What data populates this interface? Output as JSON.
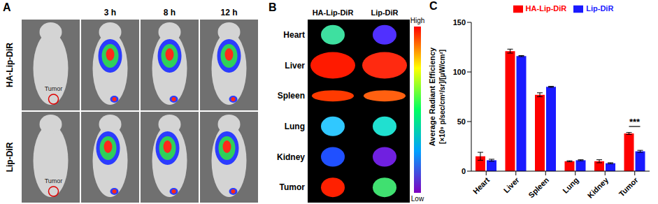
{
  "panel_a": {
    "letter": "A",
    "rows": [
      "HA-Lip-DiR",
      "Lip-DiR"
    ],
    "times": [
      "3 h",
      "8 h",
      "12 h"
    ],
    "marker_label": "Tumor"
  },
  "panel_b": {
    "letter": "B",
    "columns": [
      "HA-Lip-DiR",
      "Lip-DiR"
    ],
    "organs": [
      "Heart",
      "Liver",
      "Spleen",
      "Lung",
      "Kidney",
      "Tumor"
    ],
    "scale_high": "High",
    "scale_low": "Low"
  },
  "panel_c": {
    "letter": "C"
  },
  "chart_data": {
    "type": "bar",
    "ylabel": [
      "Average Radiant Efficiency",
      "[×10⁹ p/sec/cm²/sr]/[μW/cm²]"
    ],
    "categories": [
      "Heart",
      "Liver",
      "Spleen",
      "Lung",
      "Kidney",
      "Tumor"
    ],
    "series": [
      {
        "name": "HA-Lip-DiR",
        "color": "#ff0000",
        "values": [
          15,
          121,
          77,
          10,
          10,
          38
        ],
        "errors": [
          4,
          2,
          2,
          0.5,
          1.5,
          1
        ]
      },
      {
        "name": "Lip-DiR",
        "color": "#1a1aff",
        "values": [
          11,
          116,
          85,
          11,
          8,
          20
        ],
        "errors": [
          1,
          0.5,
          0.5,
          0.5,
          0.5,
          1
        ]
      }
    ],
    "ylim": [
      0,
      150
    ],
    "yticks": [
      0,
      50,
      100,
      150
    ],
    "legend": "top",
    "annotations": [
      {
        "text": "***",
        "category": "Tumor"
      }
    ]
  }
}
